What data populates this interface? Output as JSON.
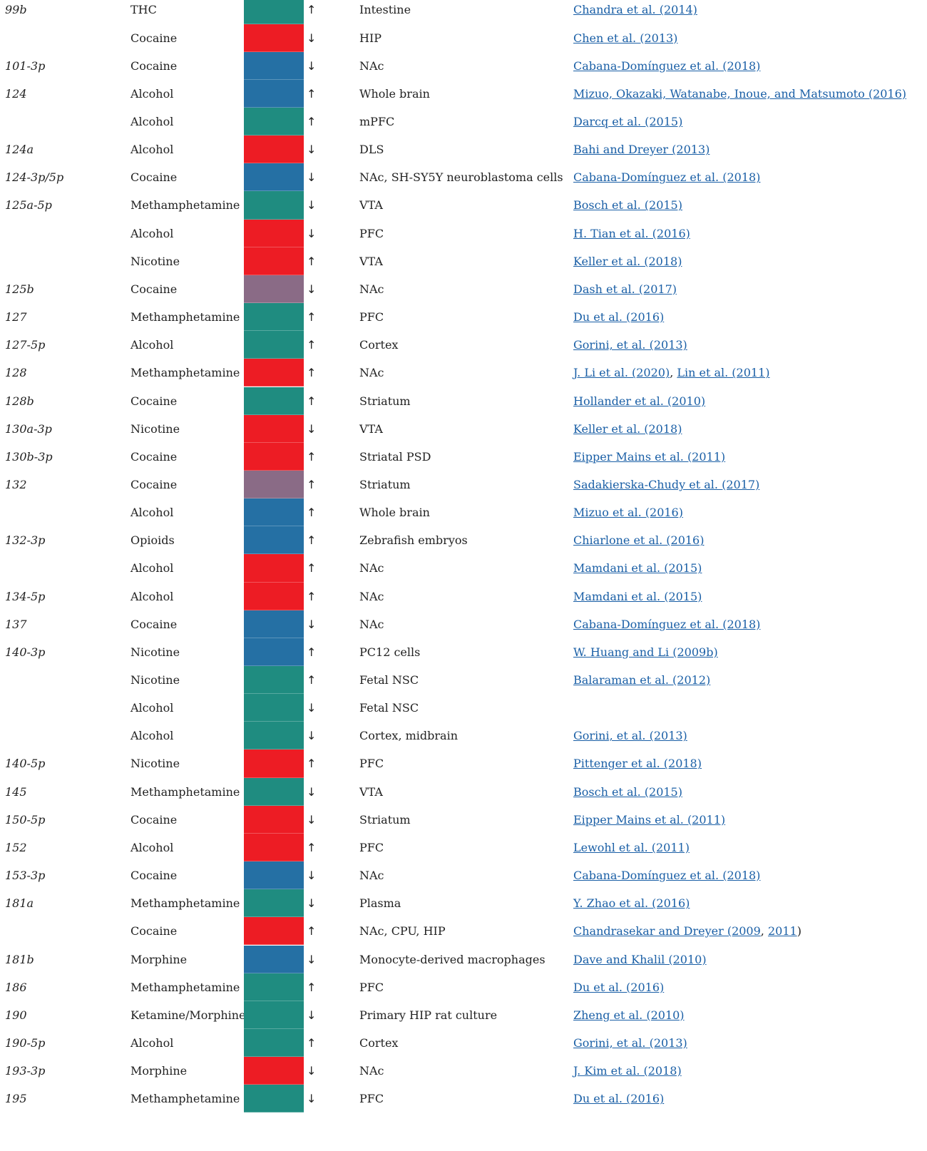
{
  "table": {
    "rows": [
      [
        "99b",
        "THC",
        "#1f8c80",
        "↑",
        "Intestine",
        [
          {
            "text": "Chandra et al. (2014)",
            "link": true
          }
        ]
      ],
      [
        null,
        "Cocaine",
        "#ed1c24",
        "↓",
        "HIP",
        [
          {
            "text": "Chen et al. (2013)",
            "link": true
          }
        ]
      ],
      [
        "101-3p",
        "Cocaine",
        "#2570a4",
        "↓",
        "NAc",
        [
          {
            "text": "Cabana-Domínguez et al. (2018)",
            "link": true
          }
        ]
      ],
      [
        "124",
        "Alcohol",
        "#2570a4",
        "↑",
        "Whole brain",
        [
          {
            "text": "Mizuo, Okazaki, Watanabe, Inoue, and Matsumoto (2016)",
            "link": true
          }
        ]
      ],
      [
        null,
        "Alcohol",
        "#1f8c80",
        "↑",
        "mPFC",
        [
          {
            "text": "Darcq et al. (2015)",
            "link": true
          }
        ]
      ],
      [
        "124a",
        "Alcohol",
        "#ed1c24",
        "↓",
        "DLS",
        [
          {
            "text": "Bahi and Dreyer (2013)",
            "link": true
          }
        ]
      ],
      [
        "124-3p/5p",
        "Cocaine",
        "#2570a4",
        "↓",
        "NAc, SH-SY5Y neuroblastoma cells",
        [
          {
            "text": "Cabana-Domínguez et al. (2018)",
            "link": true
          }
        ]
      ],
      [
        "125a-5p",
        "Methamphetamine",
        "#1f8c80",
        "↓",
        "VTA",
        [
          {
            "text": "Bosch et al. (2015)",
            "link": true
          }
        ]
      ],
      [
        null,
        "Alcohol",
        "#ed1c24",
        "↓",
        "PFC",
        [
          {
            "text": "H. Tian et al. (2016)",
            "link": true
          }
        ]
      ],
      [
        null,
        "Nicotine",
        "#ed1c24",
        "↑",
        "VTA",
        [
          {
            "text": "Keller et al. (2018)",
            "link": true
          }
        ]
      ],
      [
        "125b",
        "Cocaine",
        "#8a6b86",
        "↓",
        "NAc",
        [
          {
            "text": "Dash et al. (2017)",
            "link": true
          }
        ]
      ],
      [
        "127",
        "Methamphetamine",
        "#1f8c80",
        "↑",
        "PFC",
        [
          {
            "text": "Du et al. (2016)",
            "link": true
          }
        ]
      ],
      [
        "127-5p",
        "Alcohol",
        "#1f8c80",
        "↑",
        "Cortex",
        [
          {
            "text": "Gorini, et al. (2013)",
            "link": true
          }
        ]
      ],
      [
        "128",
        "Methamphetamine",
        "#ed1c24",
        "↑",
        "NAc",
        [
          {
            "text": "J. Li et al. (2020)",
            "link": true
          },
          {
            "text": ", ",
            "link": false
          },
          {
            "text": "Lin et al. (2011)",
            "link": true
          }
        ]
      ],
      [
        "128b",
        "Cocaine",
        "#1f8c80",
        "↑",
        "Striatum",
        [
          {
            "text": "Hollander et al. (2010)",
            "link": true
          }
        ]
      ],
      [
        "130a-3p",
        "Nicotine",
        "#ed1c24",
        "↓",
        "VTA",
        [
          {
            "text": "Keller et al. (2018)",
            "link": true
          }
        ]
      ],
      [
        "130b-3p",
        "Cocaine",
        "#ed1c24",
        "↑",
        "Striatal PSD",
        [
          {
            "text": "Eipper Mains et al. (2011)",
            "link": true
          }
        ]
      ],
      [
        "132",
        "Cocaine",
        "#8a6b86",
        "↑",
        "Striatum",
        [
          {
            "text": "Sadakierska-Chudy et al. (2017)",
            "link": true
          }
        ]
      ],
      [
        null,
        "Alcohol",
        "#2570a4",
        "↑",
        "Whole brain",
        [
          {
            "text": "Mizuo et al. (2016)",
            "link": true
          }
        ]
      ],
      [
        "132-3p",
        "Opioids",
        "#2570a4",
        "↑",
        "Zebrafish embryos",
        [
          {
            "text": "Chiarlone et al. (2016)",
            "link": true
          }
        ]
      ],
      [
        null,
        "Alcohol",
        "#ed1c24",
        "↑",
        "NAc",
        [
          {
            "text": "Mamdani et al. (2015)",
            "link": true
          }
        ]
      ],
      [
        "134-5p",
        "Alcohol",
        "#ed1c24",
        "↑",
        "NAc",
        [
          {
            "text": "Mamdani et al. (2015)",
            "link": true
          }
        ]
      ],
      [
        "137",
        "Cocaine",
        "#2570a4",
        "↓",
        "NAc",
        [
          {
            "text": "Cabana-Domínguez et al. (2018)",
            "link": true
          }
        ]
      ],
      [
        "140-3p",
        "Nicotine",
        "#2570a4",
        "↑",
        "PC12 cells",
        [
          {
            "text": "W. Huang and Li (2009b)",
            "link": true
          }
        ]
      ],
      [
        null,
        "Nicotine",
        "#1f8c80",
        "↑",
        "Fetal NSC",
        [
          {
            "text": "Balaraman et al. (2012)",
            "link": true
          }
        ]
      ],
      [
        null,
        "Alcohol",
        "#1f8c80",
        "↓",
        "Fetal NSC",
        []
      ],
      [
        null,
        "Alcohol",
        "#1f8c80",
        "↓",
        "Cortex, midbrain",
        [
          {
            "text": "Gorini, et al. (2013)",
            "link": true
          }
        ]
      ],
      [
        "140-5p",
        "Nicotine",
        "#ed1c24",
        "↑",
        "PFC",
        [
          {
            "text": "Pittenger et al. (2018)",
            "link": true
          }
        ]
      ],
      [
        "145",
        "Methamphetamine",
        "#1f8c80",
        "↓",
        "VTA",
        [
          {
            "text": "Bosch et al. (2015)",
            "link": true
          }
        ]
      ],
      [
        "150-5p",
        "Cocaine",
        "#ed1c24",
        "↓",
        "Striatum",
        [
          {
            "text": "Eipper Mains et al. (2011)",
            "link": true
          }
        ]
      ],
      [
        "152",
        "Alcohol",
        "#ed1c24",
        "↑",
        "PFC",
        [
          {
            "text": "Lewohl et al. (2011)",
            "link": true
          }
        ]
      ],
      [
        "153-3p",
        "Cocaine",
        "#2570a4",
        "↓",
        "NAc",
        [
          {
            "text": "Cabana-Domínguez et al. (2018)",
            "link": true
          }
        ]
      ],
      [
        "181a",
        "Methamphetamine",
        "#1f8c80",
        "↓",
        "Plasma",
        [
          {
            "text": "Y. Zhao et al. (2016)",
            "link": true
          }
        ]
      ],
      [
        null,
        "Cocaine",
        "#ed1c24",
        "↑",
        "NAc, CPU, HIP",
        [
          {
            "text": "Chandrasekar and Dreyer (2009",
            "link": true
          },
          {
            "text": ", ",
            "link": false
          },
          {
            "text": "2011",
            "link": true
          },
          {
            "text": ")",
            "link": false
          }
        ]
      ],
      [
        "181b",
        "Morphine",
        "#2570a4",
        "↓",
        "Monocyte-derived macrophages",
        [
          {
            "text": "Dave and Khalil (2010)",
            "link": true
          }
        ]
      ],
      [
        "186",
        "Methamphetamine",
        "#1f8c80",
        "↑",
        "PFC",
        [
          {
            "text": "Du et al. (2016)",
            "link": true
          }
        ]
      ],
      [
        "190",
        "Ketamine/Morphine",
        "#1f8c80",
        "↓",
        "Primary HIP rat culture",
        [
          {
            "text": "Zheng et al. (2010)",
            "link": true
          }
        ]
      ],
      [
        "190-5p",
        "Alcohol",
        "#1f8c80",
        "↑",
        "Cortex",
        [
          {
            "text": "Gorini, et al. (2013)",
            "link": true
          }
        ]
      ],
      [
        "193-3p",
        "Morphine",
        "#ed1c24",
        "↓",
        "NAc",
        [
          {
            "text": "J. Kim et al. (2018)",
            "link": true
          }
        ]
      ],
      [
        "195",
        "Methamphetamine",
        "#1f8c80",
        "↓",
        "PFC",
        [
          {
            "text": "Du et al. (2016)",
            "link": true
          }
        ]
      ]
    ]
  }
}
